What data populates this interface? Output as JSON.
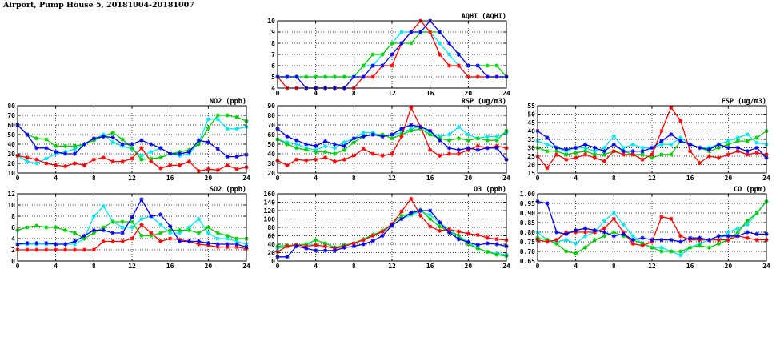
{
  "page": {
    "title": "Airport, Pump House 5, 20181004-20181007"
  },
  "chart_data": [
    {
      "id": "aqhi",
      "type": "line",
      "title": "AQHI (AQHI)",
      "xlim": [
        0,
        24
      ],
      "ylim": [
        4,
        10
      ],
      "xticks": [
        0,
        4,
        8,
        12,
        16,
        20,
        24
      ],
      "yticks": [
        4,
        5,
        6,
        7,
        8,
        9,
        10
      ],
      "ytick_labels": [
        "4",
        "5",
        "6",
        "7",
        "8",
        "9",
        "10"
      ],
      "grid": true,
      "series": [
        {
          "color": "#00e5ee",
          "values": [
            5,
            5,
            5,
            5,
            5,
            5,
            5,
            5,
            5,
            6,
            6,
            7,
            8,
            9,
            9,
            9,
            9,
            8,
            7,
            6,
            5,
            5,
            5,
            5,
            5
          ]
        },
        {
          "color": "#00cc00",
          "values": [
            5,
            5,
            5,
            5,
            5,
            5,
            5,
            5,
            5,
            6,
            7,
            7,
            8,
            8,
            8,
            9,
            9,
            9,
            8,
            7,
            6,
            6,
            6,
            6,
            5
          ]
        },
        {
          "color": "#ff0000",
          "values": [
            5,
            4,
            4,
            4,
            4,
            4,
            4,
            4,
            4,
            5,
            5,
            6,
            6,
            8,
            9,
            10,
            9,
            7,
            6,
            6,
            5,
            5,
            5,
            5,
            5
          ]
        },
        {
          "color": "#0000ee",
          "values": [
            5,
            5,
            5,
            4,
            4,
            4,
            4,
            4,
            5,
            5,
            6,
            6,
            7,
            8,
            9,
            9,
            10,
            9,
            8,
            7,
            6,
            6,
            5,
            5,
            5
          ]
        }
      ]
    },
    {
      "id": "no2",
      "type": "line",
      "title": "NO2 (ppb)",
      "xlim": [
        0,
        24
      ],
      "ylim": [
        10,
        80
      ],
      "xticks": [
        0,
        4,
        8,
        12,
        16,
        20,
        24
      ],
      "yticks": [
        10,
        20,
        30,
        40,
        50,
        60,
        70,
        80
      ],
      "ytick_labels": [
        "10",
        "20",
        "30",
        "40",
        "50",
        "60",
        "70",
        "80"
      ],
      "grid": true,
      "series": [
        {
          "color": "#00e5ee",
          "values": [
            28,
            22,
            20,
            25,
            30,
            32,
            35,
            40,
            45,
            50,
            42,
            38,
            35,
            28,
            32,
            36,
            30,
            28,
            30,
            42,
            66,
            66,
            56,
            56,
            58
          ]
        },
        {
          "color": "#00cc00",
          "values": [
            60,
            50,
            46,
            45,
            38,
            38,
            38,
            40,
            44,
            48,
            52,
            45,
            36,
            24,
            25,
            26,
            30,
            32,
            34,
            40,
            57,
            70,
            70,
            68,
            64
          ]
        },
        {
          "color": "#ff0000",
          "values": [
            28,
            26,
            24,
            20,
            18,
            17,
            20,
            18,
            24,
            26,
            22,
            22,
            25,
            36,
            22,
            15,
            18,
            18,
            22,
            12,
            14,
            13,
            18,
            14,
            16
          ]
        },
        {
          "color": "#0000ee",
          "values": [
            60,
            50,
            36,
            36,
            32,
            30,
            30,
            40,
            46,
            48,
            47,
            40,
            40,
            44,
            40,
            36,
            30,
            30,
            32,
            44,
            42,
            35,
            27,
            27,
            29
          ]
        }
      ]
    },
    {
      "id": "rsp",
      "type": "line",
      "title": "RSP (ug/m3)",
      "xlim": [
        0,
        24
      ],
      "ylim": [
        20,
        90
      ],
      "xticks": [
        0,
        4,
        8,
        12,
        16,
        20,
        24
      ],
      "yticks": [
        20,
        30,
        40,
        50,
        60,
        70,
        80,
        90
      ],
      "ytick_labels": [
        "20",
        "30",
        "40",
        "50",
        "60",
        "70",
        "80",
        "90"
      ],
      "grid": true,
      "series": [
        {
          "color": "#00e5ee",
          "values": [
            55,
            52,
            50,
            46,
            44,
            48,
            46,
            52,
            56,
            62,
            62,
            58,
            60,
            62,
            66,
            68,
            62,
            58,
            60,
            68,
            60,
            56,
            58,
            58,
            62
          ]
        },
        {
          "color": "#00cc00",
          "values": [
            55,
            50,
            46,
            44,
            42,
            42,
            40,
            44,
            52,
            58,
            60,
            60,
            56,
            60,
            64,
            66,
            60,
            56,
            54,
            56,
            54,
            56,
            54,
            54,
            64
          ]
        },
        {
          "color": "#ff0000",
          "values": [
            33,
            28,
            34,
            33,
            34,
            36,
            32,
            34,
            38,
            45,
            40,
            38,
            40,
            58,
            88,
            68,
            44,
            38,
            40,
            40,
            44,
            48,
            46,
            48,
            46
          ]
        },
        {
          "color": "#0000ee",
          "values": [
            66,
            58,
            54,
            50,
            48,
            53,
            50,
            48,
            56,
            58,
            60,
            58,
            60,
            66,
            70,
            68,
            64,
            54,
            46,
            44,
            46,
            44,
            46,
            46,
            34
          ]
        }
      ]
    },
    {
      "id": "fsp",
      "type": "line",
      "title": "FSP (ug/m3)",
      "xlim": [
        0,
        24
      ],
      "ylim": [
        15,
        55
      ],
      "xticks": [
        0,
        4,
        8,
        12,
        16,
        20,
        24
      ],
      "yticks": [
        15,
        20,
        25,
        30,
        35,
        40,
        45,
        50,
        55
      ],
      "ytick_labels": [
        "15",
        "20",
        "25",
        "30",
        "35",
        "40",
        "45",
        "50",
        "55"
      ],
      "grid": true,
      "series": [
        {
          "color": "#00e5ee",
          "values": [
            34,
            32,
            30,
            28,
            30,
            30,
            28,
            30,
            37,
            30,
            32,
            30,
            30,
            32,
            32,
            36,
            32,
            30,
            30,
            32,
            34,
            36,
            38,
            33,
            32
          ]
        },
        {
          "color": "#00cc00",
          "values": [
            30,
            28,
            28,
            26,
            27,
            28,
            26,
            26,
            28,
            28,
            26,
            26,
            24,
            26,
            26,
            34,
            32,
            30,
            28,
            30,
            32,
            34,
            34,
            36,
            40
          ]
        },
        {
          "color": "#ff0000",
          "values": [
            25,
            18,
            26,
            23,
            24,
            26,
            24,
            22,
            28,
            26,
            26,
            23,
            26,
            40,
            54,
            46,
            28,
            21,
            25,
            24,
            26,
            28,
            26,
            27,
            26
          ]
        },
        {
          "color": "#0000ee",
          "values": [
            40,
            36,
            30,
            29,
            30,
            32,
            30,
            28,
            32,
            28,
            28,
            28,
            30,
            34,
            38,
            34,
            32,
            30,
            29,
            32,
            30,
            30,
            28,
            30,
            24
          ]
        }
      ]
    },
    {
      "id": "so2",
      "type": "line",
      "title": "SO2 (ppb)",
      "xlim": [
        0,
        24
      ],
      "ylim": [
        0,
        12
      ],
      "xticks": [
        0,
        4,
        8,
        12,
        16,
        20,
        24
      ],
      "yticks": [
        0,
        2,
        4,
        6,
        8,
        10,
        12
      ],
      "ytick_labels": [
        "0",
        "2",
        "4",
        "6",
        "8",
        "10",
        "12"
      ],
      "grid": true,
      "series": [
        {
          "color": "#00e5ee",
          "values": [
            3,
            3,
            3,
            3,
            3,
            3,
            3,
            4,
            8,
            9.8,
            7,
            6,
            6,
            7.5,
            8,
            6.5,
            5,
            5,
            6,
            7.5,
            5,
            4,
            4,
            3.5,
            3
          ]
        },
        {
          "color": "#00cc00",
          "values": [
            5.5,
            6,
            6.3,
            6,
            6,
            5.5,
            5,
            4,
            5,
            6,
            7,
            7,
            7,
            4.5,
            4.5,
            5,
            5.5,
            5.5,
            5.5,
            5,
            6,
            5,
            4.5,
            4,
            4
          ]
        },
        {
          "color": "#ff0000",
          "values": [
            2,
            2,
            2,
            2,
            2,
            2,
            2,
            2,
            2,
            3.5,
            3.5,
            3.5,
            4,
            6.5,
            5,
            3.5,
            4,
            3.8,
            3.5,
            3,
            2.8,
            2.5,
            2.5,
            2.5,
            2.2
          ]
        },
        {
          "color": "#0000ee",
          "values": [
            3,
            3.2,
            3.2,
            3.2,
            3,
            3,
            3.5,
            4.5,
            5.5,
            5.5,
            5,
            5,
            7.8,
            11,
            8,
            8.3,
            6.2,
            3.5,
            3.5,
            3.5,
            3.2,
            3,
            3,
            3,
            2.5
          ]
        }
      ]
    },
    {
      "id": "o3",
      "type": "line",
      "title": "O3 (ppb)",
      "xlim": [
        0,
        24
      ],
      "ylim": [
        0,
        160
      ],
      "xticks": [
        0,
        4,
        8,
        12,
        16,
        20,
        24
      ],
      "yticks": [
        0,
        20,
        40,
        60,
        80,
        100,
        120,
        140,
        160
      ],
      "ytick_labels": [
        "0",
        "20",
        "40",
        "60",
        "80",
        "100",
        "120",
        "140",
        "160"
      ],
      "grid": true,
      "series": [
        {
          "color": "#00e5ee",
          "values": [
            30,
            35,
            38,
            40,
            38,
            35,
            32,
            38,
            42,
            50,
            62,
            70,
            85,
            100,
            110,
            118,
            110,
            90,
            75,
            60,
            45,
            30,
            22,
            18,
            15
          ]
        },
        {
          "color": "#00cc00",
          "values": [
            35,
            37,
            38,
            40,
            50,
            42,
            32,
            38,
            42,
            52,
            62,
            72,
            88,
            108,
            112,
            122,
            100,
            82,
            70,
            60,
            40,
            30,
            22,
            15,
            12
          ]
        },
        {
          "color": "#ff0000",
          "values": [
            22,
            35,
            38,
            35,
            38,
            35,
            30,
            35,
            42,
            50,
            60,
            70,
            88,
            118,
            148,
            108,
            82,
            72,
            75,
            70,
            65,
            62,
            55,
            52,
            50
          ]
        },
        {
          "color": "#0000ee",
          "values": [
            10,
            10,
            35,
            30,
            25,
            25,
            25,
            32,
            35,
            40,
            48,
            60,
            85,
            100,
            115,
            120,
            120,
            92,
            68,
            52,
            45,
            38,
            42,
            40,
            35
          ]
        }
      ]
    },
    {
      "id": "co",
      "type": "line",
      "title": "CO (ppm)",
      "xlim": [
        0,
        24
      ],
      "ylim": [
        0.65,
        1.0
      ],
      "xticks": [
        0,
        4,
        8,
        12,
        16,
        20,
        24
      ],
      "yticks": [
        0.65,
        0.7,
        0.75,
        0.8,
        0.85,
        0.9,
        0.95,
        1.0
      ],
      "ytick_labels": [
        "0.65",
        "0.70",
        "0.75",
        "0.80",
        "0.85",
        "0.90",
        "0.95",
        "1.00"
      ],
      "grid": true,
      "series": [
        {
          "color": "#00e5ee",
          "values": [
            0.8,
            0.76,
            0.75,
            0.76,
            0.74,
            0.78,
            0.8,
            0.86,
            0.9,
            0.84,
            0.78,
            0.74,
            0.72,
            0.72,
            0.7,
            0.68,
            0.72,
            0.74,
            0.76,
            0.76,
            0.8,
            0.82,
            0.84,
            0.9,
            0.96
          ]
        },
        {
          "color": "#00cc00",
          "values": [
            0.77,
            0.76,
            0.74,
            0.7,
            0.69,
            0.72,
            0.76,
            0.78,
            0.8,
            0.78,
            0.76,
            0.74,
            0.72,
            0.7,
            0.7,
            0.7,
            0.72,
            0.73,
            0.72,
            0.74,
            0.76,
            0.8,
            0.86,
            0.9,
            0.96
          ]
        },
        {
          "color": "#ff0000",
          "values": [
            0.76,
            0.75,
            0.76,
            0.8,
            0.8,
            0.8,
            0.8,
            0.82,
            0.87,
            0.8,
            0.74,
            0.73,
            0.75,
            0.88,
            0.87,
            0.78,
            0.76,
            0.76,
            0.76,
            0.76,
            0.76,
            0.78,
            0.77,
            0.76,
            0.76
          ]
        },
        {
          "color": "#0000ee",
          "values": [
            0.96,
            0.95,
            0.8,
            0.79,
            0.81,
            0.82,
            0.81,
            0.8,
            0.78,
            0.79,
            0.76,
            0.77,
            0.76,
            0.76,
            0.76,
            0.75,
            0.77,
            0.77,
            0.76,
            0.78,
            0.78,
            0.78,
            0.8,
            0.79,
            0.79
          ]
        }
      ]
    }
  ]
}
